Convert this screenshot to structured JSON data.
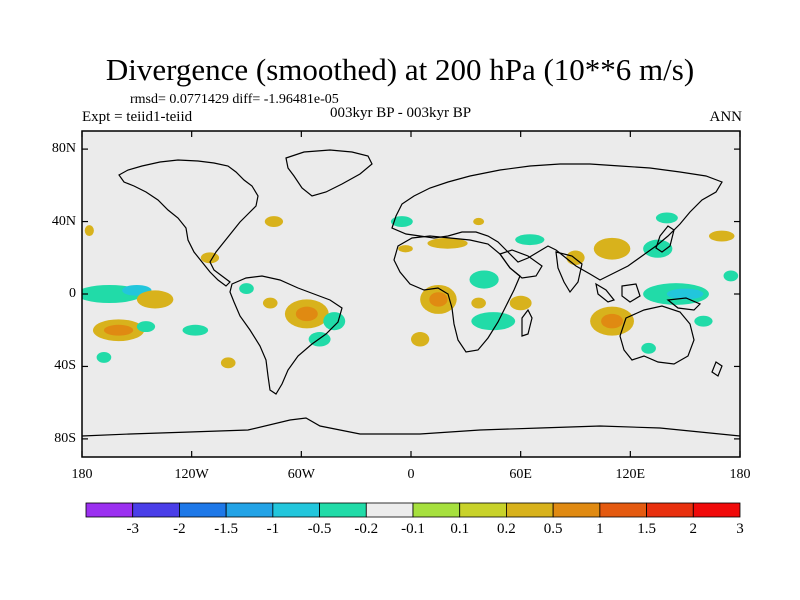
{
  "title": "Divergence (smoothed) at 200 hPa (10**6 m/s)",
  "stats_line": "rmsd= 0.0771429 diff= -1.96481e-05",
  "expt_line": "Expt = teiid1-teiid",
  "period_line": "003kyr BP - 003kyr BP",
  "season": "ANN",
  "colors": {
    "land_fill": "#ebebeb",
    "coast": "#000000"
  },
  "map": {
    "projection": "cylindrical-equidistant",
    "lon_range": [
      -180,
      180
    ],
    "lat_range": [
      -90,
      90
    ],
    "lat_ticks": [
      {
        "lat": 80,
        "label": "80N"
      },
      {
        "lat": 40,
        "label": "40N"
      },
      {
        "lat": 0,
        "label": "0"
      },
      {
        "lat": -40,
        "label": "40S"
      },
      {
        "lat": -80,
        "label": "80S"
      }
    ],
    "lon_ticks": [
      {
        "lon": -180,
        "label": "180"
      },
      {
        "lon": -120,
        "label": "120W"
      },
      {
        "lon": -60,
        "label": "60W"
      },
      {
        "lon": 0,
        "label": "0"
      },
      {
        "lon": 60,
        "label": "60E"
      },
      {
        "lon": 120,
        "label": "120E"
      },
      {
        "lon": 180,
        "label": "180"
      }
    ]
  },
  "colorbar": {
    "colors": [
      "#9b30f0",
      "#4a3ee8",
      "#1e78e8",
      "#23a3e6",
      "#22c6dc",
      "#21dba8",
      "#ececec",
      "#a6e03e",
      "#c8d22a",
      "#d8b21c",
      "#e08a12",
      "#e45a10",
      "#e8300e",
      "#f00a0a"
    ],
    "labels": [
      "-3",
      "-2",
      "-1.5",
      "-1",
      "-0.5",
      "-0.2",
      "-0.1",
      "0.1",
      "0.2",
      "0.5",
      "1",
      "1.5",
      "2",
      "3"
    ]
  },
  "regions": [
    {
      "lon": -176,
      "lat": 35,
      "rx": 2.5,
      "ry": 3,
      "level": "0.2"
    },
    {
      "lon": -165,
      "lat": 0,
      "rx": 18,
      "ry": 5,
      "level": "-0.2"
    },
    {
      "lon": -150,
      "lat": 2,
      "rx": 8,
      "ry": 3,
      "level": "-0.5"
    },
    {
      "lon": -140,
      "lat": -3,
      "rx": 10,
      "ry": 5,
      "level": "0.2"
    },
    {
      "lon": -160,
      "lat": -20,
      "rx": 14,
      "ry": 6,
      "level": "0.2"
    },
    {
      "lon": -160,
      "lat": -20,
      "rx": 8,
      "ry": 3,
      "level": "0.5"
    },
    {
      "lon": -168,
      "lat": -35,
      "rx": 4,
      "ry": 3,
      "level": "-0.2"
    },
    {
      "lon": -145,
      "lat": -18,
      "rx": 5,
      "ry": 3,
      "level": "-0.2"
    },
    {
      "lon": -110,
      "lat": 20,
      "rx": 5,
      "ry": 3,
      "level": "0.2"
    },
    {
      "lon": -118,
      "lat": -20,
      "rx": 7,
      "ry": 3,
      "level": "-0.2"
    },
    {
      "lon": -100,
      "lat": -38,
      "rx": 4,
      "ry": 3,
      "level": "0.2"
    },
    {
      "lon": -75,
      "lat": 40,
      "rx": 5,
      "ry": 3,
      "level": "0.2"
    },
    {
      "lon": -77,
      "lat": -5,
      "rx": 4,
      "ry": 3,
      "level": "0.2"
    },
    {
      "lon": -57,
      "lat": -11,
      "rx": 12,
      "ry": 8,
      "level": "0.2"
    },
    {
      "lon": -57,
      "lat": -11,
      "rx": 6,
      "ry": 4,
      "level": "0.5"
    },
    {
      "lon": -50,
      "lat": -25,
      "rx": 6,
      "ry": 4,
      "level": "-0.2"
    },
    {
      "lon": -42,
      "lat": -15,
      "rx": 6,
      "ry": 5,
      "level": "-0.2"
    },
    {
      "lon": -90,
      "lat": 3,
      "rx": 4,
      "ry": 3,
      "level": "-0.2"
    },
    {
      "lon": -5,
      "lat": 40,
      "rx": 6,
      "ry": 3,
      "level": "-0.2"
    },
    {
      "lon": 20,
      "lat": 28,
      "rx": 11,
      "ry": 3,
      "level": "0.2"
    },
    {
      "lon": -3,
      "lat": 25,
      "rx": 4,
      "ry": 2,
      "level": "0.2"
    },
    {
      "lon": 37,
      "lat": 40,
      "rx": 3,
      "ry": 2,
      "level": "0.2"
    },
    {
      "lon": 40,
      "lat": 8,
      "rx": 8,
      "ry": 5,
      "level": "-0.2"
    },
    {
      "lon": 15,
      "lat": -3,
      "rx": 10,
      "ry": 8,
      "level": "0.2"
    },
    {
      "lon": 15,
      "lat": -3,
      "rx": 5,
      "ry": 4,
      "level": "0.5"
    },
    {
      "lon": 5,
      "lat": -25,
      "rx": 5,
      "ry": 4,
      "level": "0.2"
    },
    {
      "lon": 45,
      "lat": -15,
      "rx": 12,
      "ry": 5,
      "level": "-0.2"
    },
    {
      "lon": 60,
      "lat": -5,
      "rx": 6,
      "ry": 4,
      "level": "0.2"
    },
    {
      "lon": 37,
      "lat": -5,
      "rx": 4,
      "ry": 3,
      "level": "0.2"
    },
    {
      "lon": 65,
      "lat": 30,
      "rx": 8,
      "ry": 3,
      "level": "-0.2"
    },
    {
      "lon": 90,
      "lat": 20,
      "rx": 5,
      "ry": 4,
      "level": "0.2"
    },
    {
      "lon": 110,
      "lat": 25,
      "rx": 10,
      "ry": 6,
      "level": "0.2"
    },
    {
      "lon": 135,
      "lat": 25,
      "rx": 8,
      "ry": 5,
      "level": "-0.2"
    },
    {
      "lon": 140,
      "lat": 42,
      "rx": 6,
      "ry": 3,
      "level": "-0.2"
    },
    {
      "lon": 145,
      "lat": 0,
      "rx": 18,
      "ry": 6,
      "level": "-0.2"
    },
    {
      "lon": 150,
      "lat": 0,
      "rx": 10,
      "ry": 3,
      "level": "-0.5"
    },
    {
      "lon": 110,
      "lat": -15,
      "rx": 12,
      "ry": 8,
      "level": "0.2"
    },
    {
      "lon": 110,
      "lat": -15,
      "rx": 6,
      "ry": 4,
      "level": "0.5"
    },
    {
      "lon": 170,
      "lat": 32,
      "rx": 7,
      "ry": 3,
      "level": "0.2"
    },
    {
      "lon": 175,
      "lat": 10,
      "rx": 4,
      "ry": 3,
      "level": "-0.2"
    },
    {
      "lon": 160,
      "lat": -15,
      "rx": 5,
      "ry": 3,
      "level": "-0.2"
    },
    {
      "lon": 130,
      "lat": -30,
      "rx": 4,
      "ry": 3,
      "level": "-0.2"
    }
  ]
}
